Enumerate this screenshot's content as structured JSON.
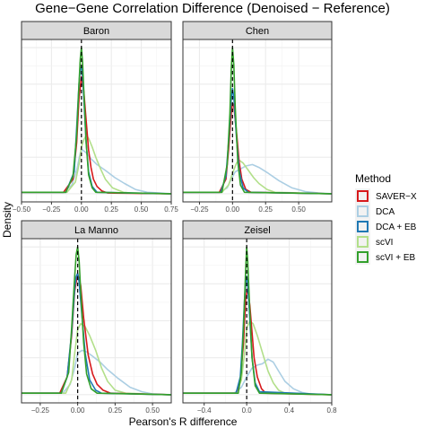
{
  "chart_data": {
    "type": "line",
    "title": "Gene−Gene Correlation Difference (Denoised − Reference)",
    "xlabel": "Pearson's R difference",
    "ylabel": "Density",
    "legend": {
      "title": "Method",
      "placement": "right",
      "entries": [
        {
          "name": "SAVER−X",
          "color": "#d7191c"
        },
        {
          "name": "DCA",
          "color": "#abcee3"
        },
        {
          "name": "DCA + EB",
          "color": "#1f78b4"
        },
        {
          "name": "scVI",
          "color": "#b2df8a"
        },
        {
          "name": "scVI + EB",
          "color": "#33a02c"
        }
      ]
    },
    "grid": true,
    "reference_line_x": 0,
    "panels": [
      {
        "name": "Baron",
        "xlim": [
          -0.5,
          0.75
        ],
        "xticks": [
          -0.5,
          -0.25,
          0,
          0.25,
          0.5,
          0.75
        ],
        "xtick_labels": [
          "−0.50",
          "−0.25",
          "0.00",
          "0.25",
          "0.50",
          "0.75"
        ],
        "series": [
          {
            "color": "#abcee3",
            "x": [
              -0.5,
              -0.15,
              -0.08,
              -0.04,
              -0.01,
              0.01,
              0.04,
              0.08,
              0.13,
              0.2,
              0.28,
              0.36,
              0.45,
              0.55,
              0.65,
              0.75
            ],
            "y": [
              0.01,
              0.01,
              0.06,
              0.16,
              0.28,
              0.3,
              0.28,
              0.24,
              0.2,
              0.16,
              0.11,
              0.07,
              0.03,
              0.01,
              0.005,
              0
            ]
          },
          {
            "color": "#b2df8a",
            "x": [
              -0.5,
              -0.12,
              -0.05,
              -0.02,
              0.0,
              0.02,
              0.04,
              0.06,
              0.09,
              0.12,
              0.16,
              0.2,
              0.26,
              0.35,
              0.45,
              0.75
            ],
            "y": [
              0.01,
              0.01,
              0.08,
              0.2,
              0.32,
              0.37,
              0.4,
              0.38,
              0.32,
              0.25,
              0.17,
              0.1,
              0.04,
              0.01,
              0.003,
              0
            ]
          },
          {
            "color": "#d7191c",
            "x": [
              -0.5,
              -0.15,
              -0.07,
              -0.04,
              -0.02,
              0.0,
              0.02,
              0.04,
              0.06,
              0.08,
              0.1,
              0.13,
              0.17,
              0.22,
              0.75
            ],
            "y": [
              0.01,
              0.01,
              0.1,
              0.35,
              0.65,
              0.8,
              0.7,
              0.5,
              0.3,
              0.18,
              0.1,
              0.05,
              0.02,
              0.005,
              0
            ]
          },
          {
            "color": "#1f78b4",
            "x": [
              -0.5,
              -0.13,
              -0.06,
              -0.04,
              -0.02,
              -0.01,
              0.0,
              0.01,
              0.02,
              0.04,
              0.06,
              0.09,
              0.13,
              0.75
            ],
            "y": [
              0.01,
              0.01,
              0.15,
              0.45,
              0.75,
              0.85,
              0.87,
              0.8,
              0.65,
              0.35,
              0.15,
              0.05,
              0.01,
              0
            ]
          },
          {
            "color": "#33a02c",
            "x": [
              -0.5,
              -0.13,
              -0.07,
              -0.04,
              -0.02,
              -0.01,
              0.0,
              0.01,
              0.02,
              0.04,
              0.06,
              0.09,
              0.12,
              0.75
            ],
            "y": [
              0.01,
              0.01,
              0.12,
              0.4,
              0.75,
              0.92,
              1.0,
              0.9,
              0.7,
              0.35,
              0.13,
              0.04,
              0.01,
              0
            ]
          }
        ]
      },
      {
        "name": "Chen",
        "xlim": [
          -0.375,
          0.75
        ],
        "xticks": [
          -0.25,
          0,
          0.25,
          0.5
        ],
        "xtick_labels": [
          "−0.25",
          "0.00",
          "0.25",
          "0.50"
        ],
        "series": [
          {
            "color": "#abcee3",
            "x": [
              -0.375,
              -0.1,
              -0.04,
              -0.01,
              0.02,
              0.06,
              0.1,
              0.15,
              0.2,
              0.27,
              0.35,
              0.45,
              0.55,
              0.65,
              0.75
            ],
            "y": [
              0.01,
              0.01,
              0.04,
              0.1,
              0.15,
              0.17,
              0.19,
              0.2,
              0.18,
              0.14,
              0.09,
              0.04,
              0.015,
              0.005,
              0
            ]
          },
          {
            "color": "#b2df8a",
            "x": [
              -0.375,
              -0.08,
              -0.03,
              0.0,
              0.03,
              0.05,
              0.08,
              0.12,
              0.16,
              0.2,
              0.26,
              0.32,
              0.75
            ],
            "y": [
              0.01,
              0.01,
              0.06,
              0.14,
              0.21,
              0.23,
              0.21,
              0.16,
              0.11,
              0.07,
              0.03,
              0.01,
              0
            ]
          },
          {
            "color": "#d7191c",
            "x": [
              -0.375,
              -0.1,
              -0.05,
              -0.03,
              -0.01,
              0.0,
              0.01,
              0.03,
              0.05,
              0.07,
              0.1,
              0.14,
              0.75
            ],
            "y": [
              0.01,
              0.01,
              0.1,
              0.3,
              0.55,
              0.62,
              0.6,
              0.42,
              0.22,
              0.1,
              0.03,
              0.01,
              0
            ]
          },
          {
            "color": "#1f78b4",
            "x": [
              -0.375,
              -0.09,
              -0.05,
              -0.03,
              -0.01,
              0.0,
              0.01,
              0.03,
              0.05,
              0.08,
              0.12,
              0.75
            ],
            "y": [
              0.01,
              0.01,
              0.12,
              0.35,
              0.65,
              0.72,
              0.66,
              0.38,
              0.16,
              0.04,
              0.01,
              0
            ]
          },
          {
            "color": "#33a02c",
            "x": [
              -0.375,
              -0.08,
              -0.04,
              -0.02,
              -0.01,
              0.0,
              0.01,
              0.02,
              0.04,
              0.06,
              0.09,
              0.75
            ],
            "y": [
              0.01,
              0.01,
              0.2,
              0.55,
              0.85,
              1.0,
              0.88,
              0.6,
              0.22,
              0.06,
              0.01,
              0
            ]
          }
        ]
      },
      {
        "name": "La Manno",
        "xlim": [
          -0.375,
          0.625
        ],
        "xticks": [
          -0.25,
          0,
          0.25,
          0.5
        ],
        "xtick_labels": [
          "−0.25",
          "0.00",
          "0.25",
          "0.50"
        ],
        "series": [
          {
            "color": "#abcee3",
            "x": [
              -0.375,
              -0.1,
              -0.05,
              -0.02,
              0.0,
              0.03,
              0.06,
              0.1,
              0.15,
              0.2,
              0.27,
              0.35,
              0.43,
              0.5,
              0.625
            ],
            "y": [
              0.01,
              0.01,
              0.07,
              0.18,
              0.28,
              0.3,
              0.29,
              0.26,
              0.22,
              0.17,
              0.11,
              0.05,
              0.02,
              0.005,
              0
            ]
          },
          {
            "color": "#b2df8a",
            "x": [
              -0.375,
              -0.08,
              -0.04,
              -0.02,
              0.0,
              0.02,
              0.05,
              0.08,
              0.12,
              0.16,
              0.2,
              0.25,
              0.32,
              0.625
            ],
            "y": [
              0.01,
              0.01,
              0.1,
              0.28,
              0.44,
              0.48,
              0.46,
              0.4,
              0.3,
              0.18,
              0.09,
              0.03,
              0.01,
              0
            ]
          },
          {
            "color": "#d7191c",
            "x": [
              -0.375,
              -0.12,
              -0.07,
              -0.04,
              -0.02,
              0.0,
              0.02,
              0.04,
              0.07,
              0.1,
              0.13,
              0.17,
              0.22,
              0.625
            ],
            "y": [
              0.01,
              0.01,
              0.12,
              0.4,
              0.7,
              0.82,
              0.74,
              0.52,
              0.27,
              0.14,
              0.07,
              0.03,
              0.01,
              0
            ]
          },
          {
            "color": "#1f78b4",
            "x": [
              -0.375,
              -0.11,
              -0.07,
              -0.04,
              -0.02,
              -0.01,
              0.0,
              0.01,
              0.03,
              0.05,
              0.08,
              0.12,
              0.16,
              0.625
            ],
            "y": [
              0.01,
              0.01,
              0.12,
              0.42,
              0.72,
              0.8,
              0.82,
              0.76,
              0.52,
              0.28,
              0.1,
              0.03,
              0.01,
              0
            ]
          },
          {
            "color": "#33a02c",
            "x": [
              -0.375,
              -0.11,
              -0.06,
              -0.04,
              -0.02,
              -0.01,
              0.0,
              0.01,
              0.02,
              0.04,
              0.06,
              0.09,
              0.13,
              0.625
            ],
            "y": [
              0.01,
              0.01,
              0.15,
              0.45,
              0.8,
              0.95,
              1.0,
              0.9,
              0.7,
              0.35,
              0.14,
              0.04,
              0.01,
              0
            ]
          }
        ]
      },
      {
        "name": "Zeisel",
        "xlim": [
          -0.6,
          0.8
        ],
        "xticks": [
          -0.4,
          0,
          0.4,
          0.8
        ],
        "xtick_labels": [
          "−0.4",
          "0.0",
          "0.4",
          "0.8"
        ],
        "series": [
          {
            "color": "#abcee3",
            "x": [
              -0.6,
              -0.12,
              -0.05,
              0.0,
              0.05,
              0.1,
              0.15,
              0.2,
              0.25,
              0.3,
              0.36,
              0.44,
              0.52,
              0.6,
              0.8
            ],
            "y": [
              0.01,
              0.01,
              0.05,
              0.12,
              0.18,
              0.2,
              0.21,
              0.24,
              0.22,
              0.16,
              0.09,
              0.04,
              0.015,
              0.005,
              0
            ]
          },
          {
            "color": "#b2df8a",
            "x": [
              -0.6,
              -0.1,
              -0.05,
              -0.02,
              0.0,
              0.03,
              0.06,
              0.1,
              0.15,
              0.2,
              0.25,
              0.3,
              0.36,
              0.8
            ],
            "y": [
              0.01,
              0.01,
              0.1,
              0.28,
              0.45,
              0.5,
              0.48,
              0.4,
              0.28,
              0.16,
              0.08,
              0.03,
              0.01,
              0
            ]
          },
          {
            "color": "#d7191c",
            "x": [
              -0.6,
              -0.1,
              -0.06,
              -0.03,
              -0.01,
              0.01,
              0.03,
              0.05,
              0.07,
              0.1,
              0.14,
              0.18,
              0.8
            ],
            "y": [
              0.01,
              0.01,
              0.1,
              0.35,
              0.65,
              0.72,
              0.6,
              0.42,
              0.25,
              0.12,
              0.04,
              0.01,
              0
            ]
          },
          {
            "color": "#1f78b4",
            "x": [
              -0.6,
              -0.1,
              -0.06,
              -0.04,
              -0.02,
              -0.01,
              0.0,
              0.01,
              0.03,
              0.05,
              0.08,
              0.12,
              0.8
            ],
            "y": [
              0.01,
              0.01,
              0.12,
              0.35,
              0.65,
              0.76,
              0.8,
              0.75,
              0.5,
              0.25,
              0.08,
              0.02,
              0
            ]
          },
          {
            "color": "#33a02c",
            "x": [
              -0.6,
              -0.08,
              -0.05,
              -0.03,
              -0.01,
              0.0,
              0.01,
              0.03,
              0.05,
              0.08,
              0.12,
              0.8
            ],
            "y": [
              0.01,
              0.01,
              0.15,
              0.45,
              0.85,
              1.0,
              0.9,
              0.55,
              0.25,
              0.06,
              0.01,
              0
            ]
          }
        ]
      }
    ]
  }
}
